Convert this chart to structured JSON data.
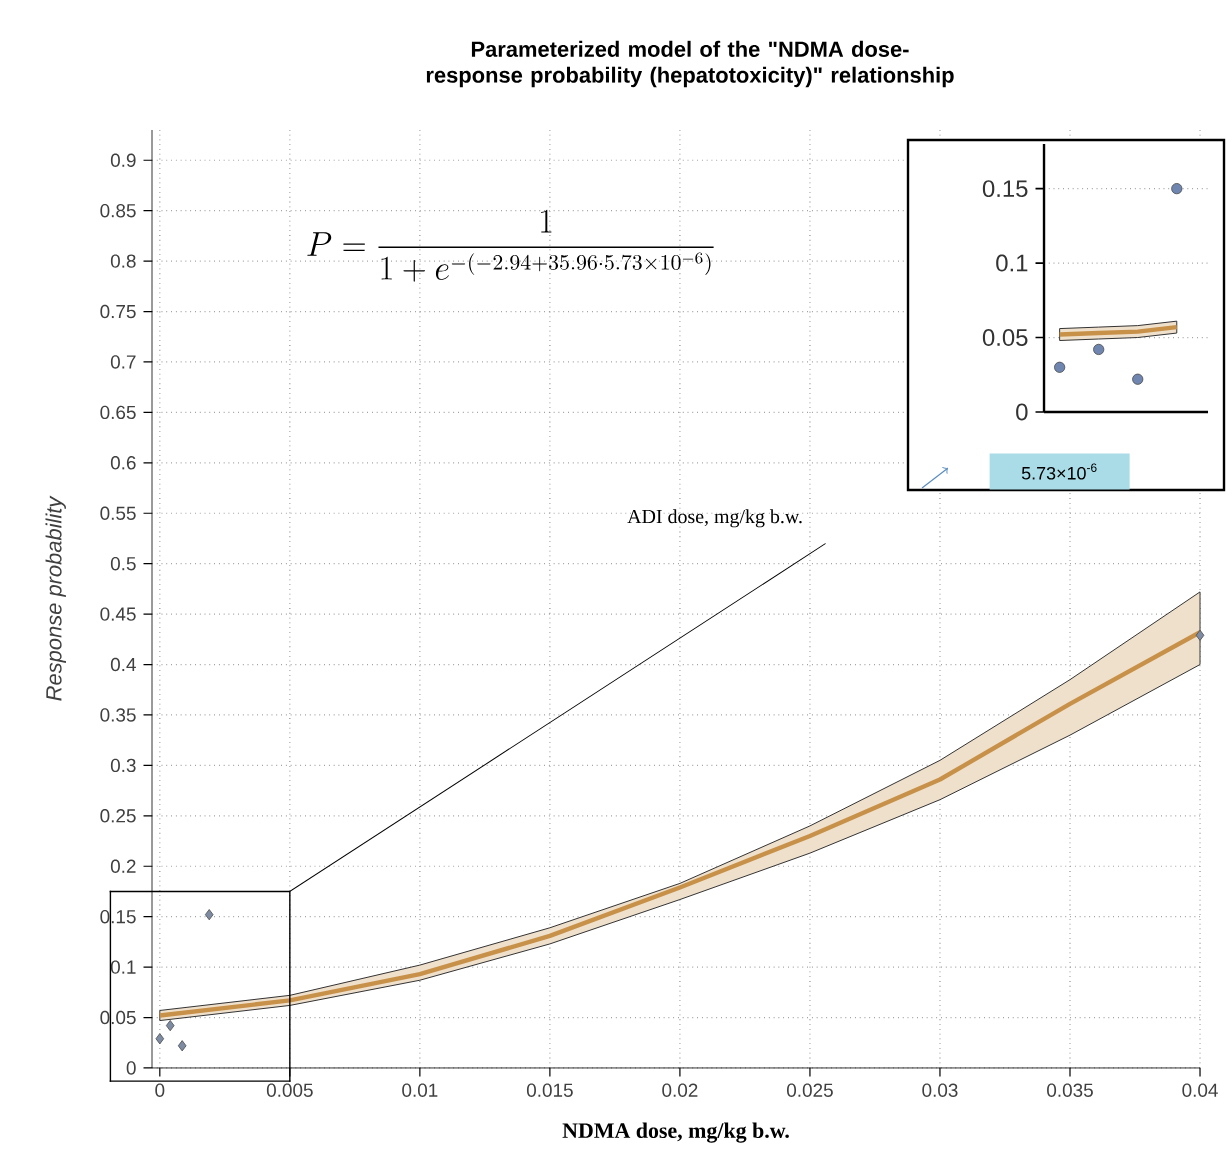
{
  "chart_data": [
    {
      "type": "scatter",
      "title": "Parameterized model of the \"NDMA dose-response probability (hepatotoxicity)\" relationship",
      "xlabel": "NDMA dose,  mg/kg b.w.",
      "ylabel": "Response probability",
      "xlim": [
        -0.0003,
        0.04
      ],
      "ylim": [
        0,
        0.93
      ],
      "xticks": [
        0,
        0.005,
        0.01,
        0.015,
        0.02,
        0.025,
        0.03,
        0.035,
        0.04
      ],
      "yticks": [
        0,
        0.05,
        0.1,
        0.15,
        0.2,
        0.25,
        0.3,
        0.35,
        0.4,
        0.45,
        0.5,
        0.55,
        0.6,
        0.65,
        0.7,
        0.75,
        0.8,
        0.85,
        0.9
      ],
      "grid": true,
      "series": [
        {
          "type": "scatter",
          "marker": "diamond",
          "color": "#7d8ba3",
          "x": [
            0,
            0.0004,
            0.00086,
            0.0019,
            0.04
          ],
          "values": [
            0.029,
            0.042,
            0.022,
            0.152,
            0.429
          ]
        },
        {
          "type": "line",
          "color": "#c8914a",
          "x": [
            0,
            0.005,
            0.01,
            0.015,
            0.02,
            0.025,
            0.03,
            0.035,
            0.04
          ],
          "values": [
            0.052,
            0.067,
            0.093,
            0.131,
            0.179,
            0.23,
            0.286,
            0.361,
            0.432
          ],
          "lower": [
            0.047,
            0.062,
            0.087,
            0.123,
            0.167,
            0.213,
            0.266,
            0.33,
            0.4
          ],
          "upper": [
            0.057,
            0.072,
            0.102,
            0.139,
            0.183,
            0.24,
            0.305,
            0.385,
            0.472
          ]
        }
      ],
      "annotations": [
        "P = \\frac{1}{1+e^{-(-2.94+35.96\\cdot 5.73\\times 10^{-6})}}",
        "ADI dose, mg/kg b.w."
      ]
    },
    {
      "type": "scatter",
      "categories": [
        null,
        null,
        null,
        null
      ],
      "ylim": [
        0,
        0.18
      ],
      "yticks": [
        0,
        0.05,
        0.1,
        0.15
      ],
      "grid": "y",
      "series": [
        {
          "type": "scatter",
          "marker": "circle",
          "color": "#6f86b0",
          "values": [
            0.03,
            0.042,
            0.022,
            0.15
          ]
        },
        {
          "type": "line",
          "color": "#c8914a",
          "values": [
            0.052,
            0.053,
            0.054,
            0.057
          ],
          "lower": [
            0.048,
            0.049,
            0.05,
            0.053
          ],
          "upper": [
            0.056,
            0.057,
            0.058,
            0.061
          ]
        }
      ],
      "annotations": [
        "5.73×10$^{-6}$"
      ]
    }
  ]
}
